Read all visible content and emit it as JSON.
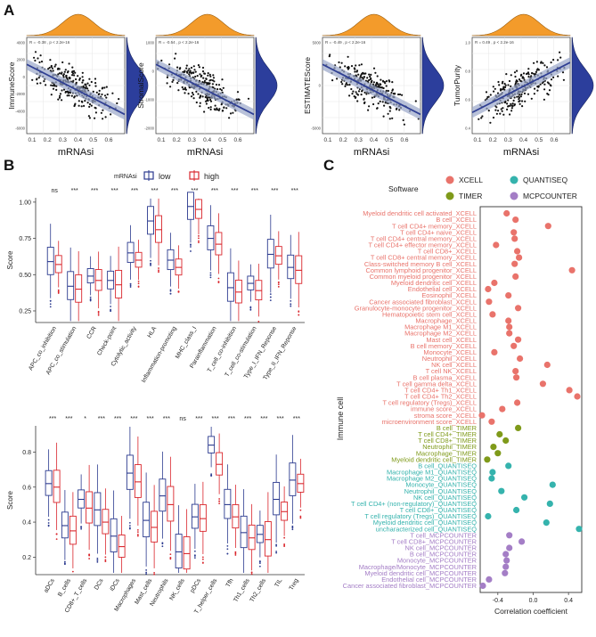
{
  "panels": {
    "a": "A",
    "b": "B",
    "c": "C"
  },
  "panel_a": [
    {
      "ylabel": "ImmuneScore",
      "xlabel": "mRNAsi",
      "stat": "R = -0.38 , p < 2.2e-16",
      "yticks": [
        "4000",
        "2000",
        "0",
        "-2000",
        "-4000",
        "-6000"
      ],
      "xticks": [
        "0.1",
        "0.2",
        "0.3",
        "0.4",
        "0.5",
        "0.6"
      ],
      "slope": -1
    },
    {
      "ylabel": "StromalScore",
      "xlabel": "mRNAsi",
      "stat": "R = -0.54 , p < 2.2e-16",
      "yticks": [
        "1000",
        "0",
        "-1000",
        "-2000"
      ],
      "xticks": [
        "0.1",
        "0.2",
        "0.3",
        "0.4",
        "0.5",
        "0.6"
      ],
      "slope": -1
    },
    {
      "ylabel": "ESTIMATEScore",
      "xlabel": "mRNAsi",
      "stat": "R = -0.49 , p < 2.2e-16",
      "yticks": [
        "5000",
        "0",
        "-5000"
      ],
      "xticks": [
        "0.1",
        "0.2",
        "0.3",
        "0.4",
        "0.5",
        "0.6"
      ],
      "slope": -1
    },
    {
      "ylabel": "TumorPurity",
      "xlabel": "mRNAsi",
      "stat": "R = 0.49 , p < 2.2e-16",
      "yticks": [
        "1.0",
        "0.8",
        "0.6",
        "0.4"
      ],
      "xticks": [
        "0.1",
        "0.2",
        "0.3",
        "0.4",
        "0.5",
        "0.6"
      ],
      "slope": 1
    }
  ],
  "panel_b": {
    "legend_title": "mRNAsi",
    "legend_low": "low",
    "legend_high": "high",
    "colors": {
      "low": "#2b3a8f",
      "high": "#d9262c"
    },
    "ylabel": "Score",
    "top": {
      "yticks": [
        "1.00",
        "0.75",
        "0.50",
        "0.25"
      ],
      "categories": [
        "APC_co_inhibition",
        "APC_co_stimulation",
        "CCR",
        "Check-point",
        "Cytolytic_activity",
        "HLA",
        "Inflammation-promoting",
        "MHC_class_I",
        "Parainflammation",
        "T_cell_co-inhibition",
        "T_cell_co-stimulation",
        "Type_I_IFN_Reponse",
        "Type_II_IFN_Reponse"
      ],
      "signif": [
        "ns",
        "***",
        "***",
        "***",
        "***",
        "***",
        "***",
        "***",
        "***",
        "***",
        "***",
        "***",
        "***"
      ],
      "low_median": [
        0.59,
        0.42,
        0.49,
        0.46,
        0.65,
        0.87,
        0.6,
        0.97,
        0.75,
        0.41,
        0.44,
        0.64,
        0.55
      ],
      "high_median": [
        0.57,
        0.4,
        0.46,
        0.43,
        0.6,
        0.81,
        0.55,
        0.95,
        0.71,
        0.38,
        0.39,
        0.63,
        0.53
      ]
    },
    "bottom": {
      "yticks": [
        "0.8",
        "0.6",
        "0.4",
        "0.2"
      ],
      "categories": [
        "aDCs",
        "B_cells",
        "CD8+_T_cells",
        "DCs",
        "iDCs",
        "Macrophages",
        "Mast_cells",
        "Neutrophils",
        "NK_cells",
        "pDCs",
        "T_helper_cells",
        "Tfh",
        "Th1_cells",
        "Th2_cells",
        "TIL",
        "Treg"
      ],
      "signif": [
        "***",
        "***",
        "*",
        "***",
        "***",
        "***",
        "***",
        "***",
        "ns",
        "***",
        "***",
        "***",
        "***",
        "***",
        "***",
        "***"
      ],
      "low_median": [
        0.62,
        0.38,
        0.53,
        0.47,
        0.32,
        0.68,
        0.41,
        0.55,
        0.23,
        0.43,
        0.84,
        0.5,
        0.34,
        0.33,
        0.53,
        0.64
      ],
      "high_median": [
        0.6,
        0.35,
        0.48,
        0.4,
        0.26,
        0.63,
        0.37,
        0.5,
        0.22,
        0.42,
        0.73,
        0.43,
        0.31,
        0.3,
        0.46,
        0.62
      ]
    }
  },
  "panel_c": {
    "legend_title": "Software",
    "legend": [
      {
        "name": "XCELL",
        "color": "#e9736b"
      },
      {
        "name": "QUANTISEQ",
        "color": "#35b3ad"
      },
      {
        "name": "TIMER",
        "color": "#7f9a1a"
      },
      {
        "name": "MCPCOUNTER",
        "color": "#a47ec6"
      }
    ],
    "ylabel": "Immune cell",
    "xlabel": "Correlation coefficient",
    "xticks": [
      "-0.4",
      "0.0",
      "0.4"
    ],
    "xlim": [
      -0.6,
      0.55
    ],
    "chart_data": {
      "type": "scatter",
      "title": "",
      "xlabel": "Correlation coefficient",
      "ylabel": "Immune cell",
      "xlim": [
        -0.6,
        0.55
      ],
      "points": [
        {
          "label": "Myeloid dendritic cell activated_XCELL",
          "value": -0.3,
          "group": "XCELL"
        },
        {
          "label": "B cell_XCELL",
          "value": -0.2,
          "group": "XCELL"
        },
        {
          "label": "T cell CD4+ memory_XCELL",
          "value": 0.17,
          "group": "XCELL"
        },
        {
          "label": "T cell CD4+ naive_XCELL",
          "value": -0.22,
          "group": "XCELL"
        },
        {
          "label": "T cell CD4+ central memory_XCELL",
          "value": -0.21,
          "group": "XCELL"
        },
        {
          "label": "T cell CD4+ effector memory_XCELL",
          "value": -0.42,
          "group": "XCELL"
        },
        {
          "label": "T cell CD8+_XCELL",
          "value": -0.18,
          "group": "XCELL"
        },
        {
          "label": "T cell CD8+ central memory_XCELL",
          "value": -0.16,
          "group": "XCELL"
        },
        {
          "label": "Class-switched memory B cell_XCELL",
          "value": -0.21,
          "group": "XCELL"
        },
        {
          "label": "Common lymphoid progenitor_XCELL",
          "value": 0.44,
          "group": "XCELL"
        },
        {
          "label": "Common myeloid progenitor_XCELL",
          "value": -0.2,
          "group": "XCELL"
        },
        {
          "label": "Myeloid dendritic cell_XCELL",
          "value": -0.44,
          "group": "XCELL"
        },
        {
          "label": "Endothelial cell_XCELL",
          "value": -0.51,
          "group": "XCELL"
        },
        {
          "label": "Eosinophil_XCELL",
          "value": -0.28,
          "group": "XCELL"
        },
        {
          "label": "Cancer associated fibroblast_XCELL",
          "value": -0.5,
          "group": "XCELL"
        },
        {
          "label": "Granulocyte-monocyte progenitor_XCELL",
          "value": -0.17,
          "group": "XCELL"
        },
        {
          "label": "Hematopoietic stem cell_XCELL",
          "value": -0.46,
          "group": "XCELL"
        },
        {
          "label": "Macrophage_XCELL",
          "value": -0.28,
          "group": "XCELL"
        },
        {
          "label": "Macrophage M1_XCELL",
          "value": -0.27,
          "group": "XCELL"
        },
        {
          "label": "Macrophage M2_XCELL",
          "value": -0.27,
          "group": "XCELL"
        },
        {
          "label": "Mast cell_XCELL",
          "value": -0.17,
          "group": "XCELL"
        },
        {
          "label": "B cell memory_XCELL",
          "value": -0.22,
          "group": "XCELL"
        },
        {
          "label": "Monocyte_XCELL",
          "value": -0.44,
          "group": "XCELL"
        },
        {
          "label": "Neutrophil_XCELL",
          "value": -0.15,
          "group": "XCELL"
        },
        {
          "label": "NK cell_XCELL",
          "value": 0.16,
          "group": "XCELL"
        },
        {
          "label": "T cell NK_XCELL",
          "value": -0.2,
          "group": "XCELL"
        },
        {
          "label": "B cell plasma_XCELL",
          "value": -0.19,
          "group": "XCELL"
        },
        {
          "label": "T cell gamma delta_XCELL",
          "value": 0.11,
          "group": "XCELL"
        },
        {
          "label": "T cell CD4+ Th1_XCELL",
          "value": 0.41,
          "group": "XCELL"
        },
        {
          "label": "T cell CD4+ Th2_XCELL",
          "value": 0.5,
          "group": "XCELL"
        },
        {
          "label": "T cell regulatory (Tregs)_XCELL",
          "value": -0.18,
          "group": "XCELL"
        },
        {
          "label": "immune score_XCELL",
          "value": -0.35,
          "group": "XCELL"
        },
        {
          "label": "stroma score_XCELL",
          "value": -0.58,
          "group": "XCELL"
        },
        {
          "label": "microenvironment score_XCELL",
          "value": -0.47,
          "group": "XCELL"
        },
        {
          "label": "B cell_TIMER",
          "value": -0.17,
          "group": "TIMER"
        },
        {
          "label": "T cell CD4+_TIMER",
          "value": -0.38,
          "group": "TIMER"
        },
        {
          "label": "T cell CD8+_TIMER",
          "value": -0.31,
          "group": "TIMER"
        },
        {
          "label": "Neutrophil_TIMER",
          "value": -0.45,
          "group": "TIMER"
        },
        {
          "label": "Macrophage_TIMER",
          "value": -0.4,
          "group": "TIMER"
        },
        {
          "label": "Myeloid dendritic cell_TIMER",
          "value": -0.52,
          "group": "TIMER"
        },
        {
          "label": "B cell_QUANTISEQ",
          "value": -0.28,
          "group": "QUANTISEQ"
        },
        {
          "label": "Macrophage M1_QUANTISEQ",
          "value": -0.46,
          "group": "QUANTISEQ"
        },
        {
          "label": "Macrophage M2_QUANTISEQ",
          "value": -0.47,
          "group": "QUANTISEQ"
        },
        {
          "label": "Monocyte_QUANTISEQ",
          "value": 0.22,
          "group": "QUANTISEQ"
        },
        {
          "label": "Neutrophil_QUANTISEQ",
          "value": -0.36,
          "group": "QUANTISEQ"
        },
        {
          "label": "NK cell_QUANTISEQ",
          "value": -0.1,
          "group": "QUANTISEQ"
        },
        {
          "label": "T cell CD4+ (non-regulatory)_QUANTISEQ",
          "value": 0.19,
          "group": "QUANTISEQ"
        },
        {
          "label": "T cell CD8+_QUANTISEQ",
          "value": -0.19,
          "group": "QUANTISEQ"
        },
        {
          "label": "T cell regulatory (Tregs)_QUANTISEQ",
          "value": -0.51,
          "group": "QUANTISEQ"
        },
        {
          "label": "Myeloid dendritic cell_QUANTISEQ",
          "value": 0.15,
          "group": "QUANTISEQ"
        },
        {
          "label": "uncharacterized cell_QUANTISEQ",
          "value": 0.52,
          "group": "QUANTISEQ"
        },
        {
          "label": "T cell_MCPCOUNTER",
          "value": -0.27,
          "group": "MCPCOUNTER"
        },
        {
          "label": "T cell CD8+_MCPCOUNTER",
          "value": -0.13,
          "group": "MCPCOUNTER"
        },
        {
          "label": "NK cell_MCPCOUNTER",
          "value": -0.27,
          "group": "MCPCOUNTER"
        },
        {
          "label": "B cell_MCPCOUNTER",
          "value": -0.31,
          "group": "MCPCOUNTER"
        },
        {
          "label": "Monocyte_MCPCOUNTER",
          "value": -0.3,
          "group": "MCPCOUNTER"
        },
        {
          "label": "Macrophage/Monocyte_MCPCOUNTER",
          "value": -0.31,
          "group": "MCPCOUNTER"
        },
        {
          "label": "Myeloid dendritic cell_MCPCOUNTER",
          "value": -0.32,
          "group": "MCPCOUNTER"
        },
        {
          "label": "Endothelial cell_MCPCOUNTER",
          "value": -0.5,
          "group": "MCPCOUNTER"
        },
        {
          "label": "Cancer associated fibroblast_MCPCOUNTER",
          "value": -0.57,
          "group": "MCPCOUNTER"
        }
      ]
    }
  }
}
